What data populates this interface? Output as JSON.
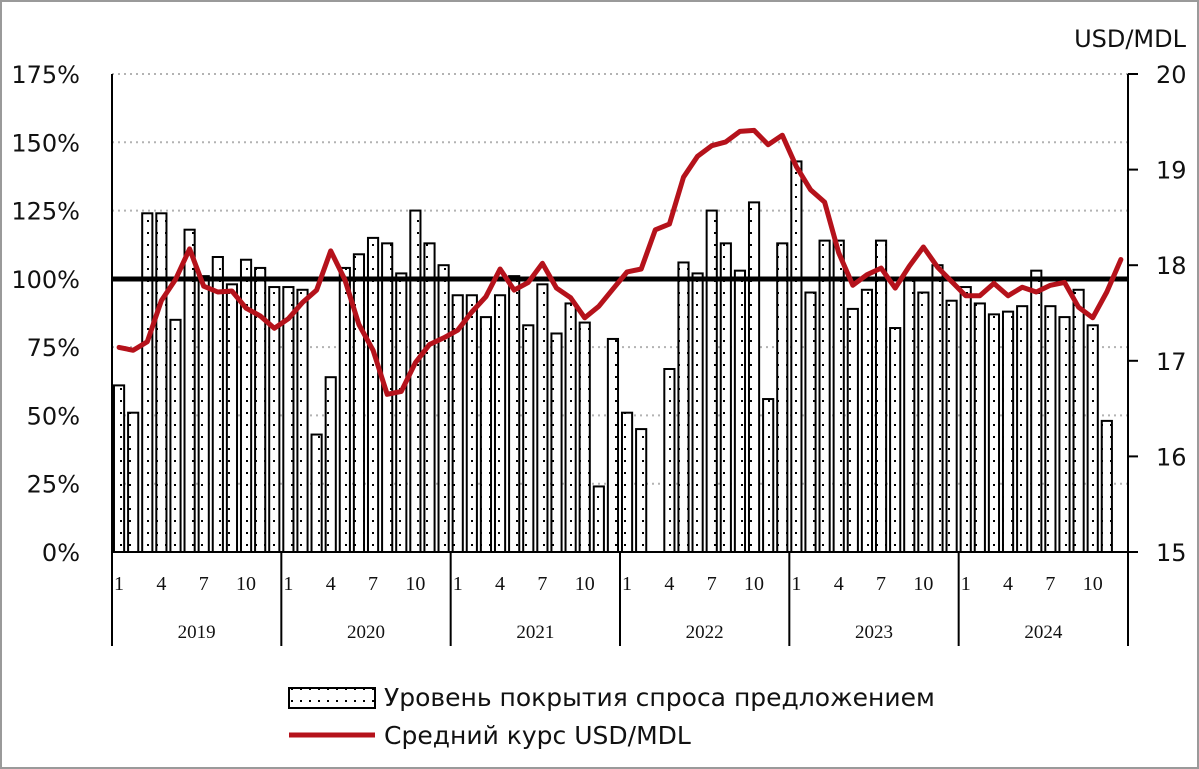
{
  "chart_data": {
    "type": "bar+line",
    "title": "",
    "left_axis": {
      "ylim": [
        0,
        175
      ],
      "ticks": [
        "0%",
        "25%",
        "50%",
        "75%",
        "100%",
        "125%",
        "150%",
        "175%"
      ]
    },
    "right_axis": {
      "label": "USD/MDL",
      "ylim": [
        15,
        20
      ],
      "ticks": [
        "15",
        "16",
        "17",
        "18",
        "19",
        "20"
      ]
    },
    "x_tick_labels": [
      "1",
      "4",
      "7",
      "10"
    ],
    "years": [
      "2019",
      "2020",
      "2021",
      "2022",
      "2023",
      "2024"
    ],
    "reference_line": 100,
    "grid": "horizontal dotted",
    "legend_position": "bottom",
    "series": [
      {
        "name": "Уровень покрытия спроса предложением",
        "kind": "bar",
        "axis": "left",
        "values": [
          61,
          51,
          124,
          124,
          85,
          118,
          101,
          108,
          98,
          107,
          104,
          97,
          97,
          96,
          43,
          64,
          104,
          109,
          115,
          113,
          102,
          125,
          113,
          105,
          94,
          94,
          86,
          94,
          101,
          83,
          98,
          80,
          91,
          84,
          24,
          78,
          51,
          45,
          0,
          67,
          106,
          102,
          125,
          113,
          103,
          128,
          56,
          113,
          143,
          95,
          114,
          114,
          89,
          96,
          114,
          82,
          100,
          95,
          105,
          92,
          97,
          91,
          87,
          88,
          90,
          103,
          90,
          86,
          96,
          83,
          48,
          0
        ]
      },
      {
        "name": "Средний курс USD/MDL",
        "kind": "line",
        "axis": "right",
        "color": "#b5121b",
        "values": [
          17.14,
          17.11,
          17.2,
          17.63,
          17.85,
          18.17,
          17.78,
          17.72,
          17.73,
          17.55,
          17.47,
          17.34,
          17.44,
          17.61,
          17.74,
          18.15,
          17.85,
          17.38,
          17.11,
          16.65,
          16.68,
          16.98,
          17.17,
          17.24,
          17.32,
          17.51,
          17.67,
          17.96,
          17.74,
          17.82,
          18.02,
          17.76,
          17.66,
          17.45,
          17.57,
          17.75,
          17.93,
          17.96,
          18.37,
          18.43,
          18.92,
          19.14,
          19.25,
          19.29,
          19.4,
          19.41,
          19.26,
          19.36,
          19.03,
          18.79,
          18.66,
          18.13,
          17.79,
          17.9,
          17.97,
          17.76,
          17.99,
          18.19,
          17.98,
          17.83,
          17.68,
          17.68,
          17.81,
          17.68,
          17.77,
          17.72,
          17.79,
          17.82,
          17.56,
          17.45,
          17.72,
          18.06
        ]
      }
    ]
  }
}
